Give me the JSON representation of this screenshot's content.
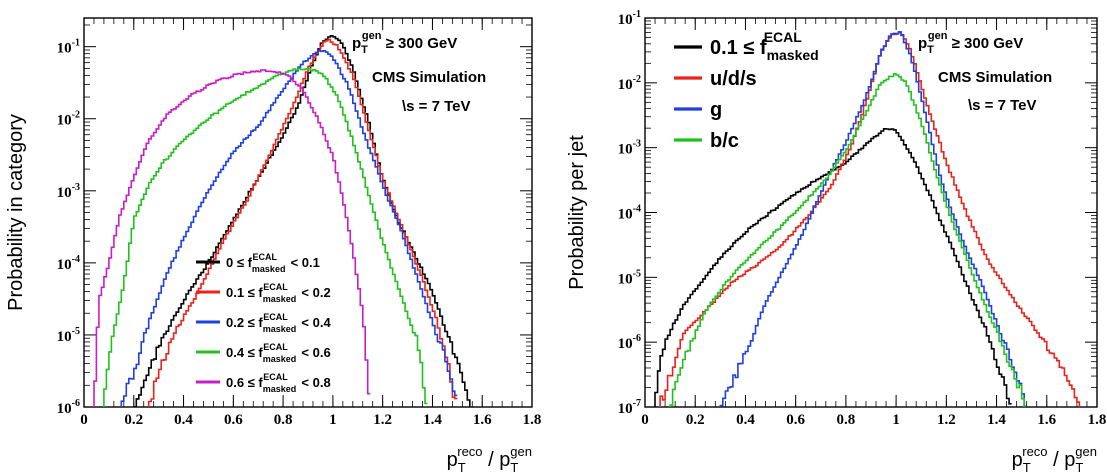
{
  "chart_data": [
    {
      "type": "line",
      "ylabel": "Probability in category",
      "xlabel": {
        "base": "p",
        "num_sup": "reco",
        "num_sub": "T",
        "slash": "/",
        "den_sup": "gen",
        "den_sub": "T"
      },
      "xlim": [
        0,
        1.8
      ],
      "ylim": [
        1e-06,
        0.25
      ],
      "yscale": "log",
      "xticks": [
        "0",
        "0.2",
        "0.4",
        "0.6",
        "0.8",
        "1",
        "1.2",
        "1.4",
        "1.6",
        "1.8"
      ],
      "yticks": [
        {
          "base": "10",
          "exp": "-6"
        },
        {
          "base": "10",
          "exp": "-5"
        },
        {
          "base": "10",
          "exp": "-4"
        },
        {
          "base": "10",
          "exp": "-3"
        },
        {
          "base": "10",
          "exp": "-2"
        },
        {
          "base": "10",
          "exp": "-1"
        }
      ],
      "annotations": {
        "cut": {
          "p": "p",
          "sub": "T",
          "sup": "gen",
          "rest": " ≥ 300 GeV"
        },
        "experiment": "CMS Simulation",
        "energy": "\\s = 7 TeV"
      },
      "legend_position": "bottom-center",
      "series": [
        {
          "name": {
            "pre": "0 ≤ f",
            "sup": "ECAL",
            "sub": "masked",
            "post": " < 0.1"
          },
          "color": "#000000",
          "points": [
            [
              0.2,
              1e-06
            ],
            [
              0.26,
              3e-06
            ],
            [
              0.3,
              7e-06
            ],
            [
              0.4,
              3e-05
            ],
            [
              0.5,
              0.0001
            ],
            [
              0.6,
              0.0004
            ],
            [
              0.7,
              0.0015
            ],
            [
              0.8,
              0.006
            ],
            [
              0.86,
              0.015
            ],
            [
              0.92,
              0.06
            ],
            [
              0.96,
              0.12
            ],
            [
              1.0,
              0.14
            ],
            [
              1.04,
              0.11
            ],
            [
              1.08,
              0.05
            ],
            [
              1.14,
              0.01
            ],
            [
              1.2,
              0.0015
            ],
            [
              1.26,
              0.0004
            ],
            [
              1.32,
              0.00015
            ],
            [
              1.4,
              4e-05
            ],
            [
              1.46,
              1e-05
            ],
            [
              1.52,
              3e-06
            ],
            [
              1.56,
              1e-06
            ]
          ]
        },
        {
          "name": {
            "pre": "0.1 ≤ f",
            "sup": "ECAL",
            "sub": "masked",
            "post": " < 0.2"
          },
          "color": "#e8231c",
          "points": [
            [
              0.26,
              1e-06
            ],
            [
              0.3,
              3e-06
            ],
            [
              0.36,
              1e-05
            ],
            [
              0.46,
              4e-05
            ],
            [
              0.56,
              0.0002
            ],
            [
              0.66,
              0.0008
            ],
            [
              0.76,
              0.004
            ],
            [
              0.84,
              0.015
            ],
            [
              0.9,
              0.05
            ],
            [
              0.96,
              0.11
            ],
            [
              0.98,
              0.13
            ],
            [
              1.02,
              0.1
            ],
            [
              1.08,
              0.04
            ],
            [
              1.14,
              0.008
            ],
            [
              1.2,
              0.0015
            ],
            [
              1.28,
              0.0003
            ],
            [
              1.36,
              6e-05
            ],
            [
              1.42,
              1.5e-05
            ],
            [
              1.46,
              4e-06
            ],
            [
              1.5,
              1e-06
            ]
          ]
        },
        {
          "name": {
            "pre": "0.2 ≤ f",
            "sup": "ECAL",
            "sub": "masked",
            "post": " < 0.4"
          },
          "color": "#1f3fe0",
          "points": [
            [
              0.14,
              1e-06
            ],
            [
              0.2,
              3e-06
            ],
            [
              0.26,
              1.5e-05
            ],
            [
              0.34,
              8e-05
            ],
            [
              0.42,
              0.0003
            ],
            [
              0.5,
              0.001
            ],
            [
              0.6,
              0.0035
            ],
            [
              0.7,
              0.008
            ],
            [
              0.78,
              0.02
            ],
            [
              0.86,
              0.05
            ],
            [
              0.92,
              0.08
            ],
            [
              0.96,
              0.09
            ],
            [
              1.0,
              0.07
            ],
            [
              1.06,
              0.03
            ],
            [
              1.12,
              0.007
            ],
            [
              1.2,
              0.0012
            ],
            [
              1.28,
              0.00025
            ],
            [
              1.34,
              6e-05
            ],
            [
              1.4,
              1.5e-05
            ],
            [
              1.46,
              4e-06
            ],
            [
              1.5,
              1e-06
            ]
          ]
        },
        {
          "name": {
            "pre": "0.4 ≤ f",
            "sup": "ECAL",
            "sub": "masked",
            "post": " < 0.6"
          },
          "color": "#22c11e",
          "points": [
            [
              0.08,
              1e-06
            ],
            [
              0.1,
              5e-06
            ],
            [
              0.16,
              5e-05
            ],
            [
              0.2,
              0.0004
            ],
            [
              0.26,
              0.0012
            ],
            [
              0.32,
              0.0025
            ],
            [
              0.4,
              0.005
            ],
            [
              0.5,
              0.01
            ],
            [
              0.6,
              0.018
            ],
            [
              0.7,
              0.028
            ],
            [
              0.78,
              0.04
            ],
            [
              0.84,
              0.048
            ],
            [
              0.9,
              0.05
            ],
            [
              0.96,
              0.042
            ],
            [
              1.02,
              0.02
            ],
            [
              1.08,
              0.005
            ],
            [
              1.14,
              0.001
            ],
            [
              1.2,
              0.0002
            ],
            [
              1.28,
              3e-05
            ],
            [
              1.34,
              8e-06
            ],
            [
              1.38,
              1e-06
            ]
          ]
        },
        {
          "name": {
            "pre": "0.6 ≤ f",
            "sup": "ECAL",
            "sub": "masked",
            "post": " < 0.8"
          },
          "color": "#c61fc6",
          "points": [
            [
              0.04,
              1e-06
            ],
            [
              0.06,
              3e-05
            ],
            [
              0.1,
              0.0001
            ],
            [
              0.14,
              0.0004
            ],
            [
              0.2,
              0.0015
            ],
            [
              0.26,
              0.005
            ],
            [
              0.34,
              0.012
            ],
            [
              0.42,
              0.02
            ],
            [
              0.52,
              0.032
            ],
            [
              0.62,
              0.042
            ],
            [
              0.7,
              0.046
            ],
            [
              0.76,
              0.046
            ],
            [
              0.82,
              0.04
            ],
            [
              0.88,
              0.025
            ],
            [
              0.94,
              0.01
            ],
            [
              1.0,
              0.003
            ],
            [
              1.04,
              0.0008
            ],
            [
              1.08,
              0.00015
            ],
            [
              1.12,
              2e-05
            ],
            [
              1.15,
              1e-06
            ]
          ]
        }
      ]
    },
    {
      "type": "line",
      "ylabel": "Probability per jet",
      "xlabel": {
        "base": "p",
        "num_sup": "reco",
        "num_sub": "T",
        "slash": "/",
        "den_sup": "gen",
        "den_sub": "T"
      },
      "xlim": [
        0,
        1.8
      ],
      "ylim": [
        1e-07,
        0.1
      ],
      "yscale": "log",
      "xticks": [
        "0",
        "0.2",
        "0.4",
        "0.6",
        "0.8",
        "1",
        "1.2",
        "1.4",
        "1.6",
        "1.8"
      ],
      "yticks": [
        {
          "base": "10",
          "exp": "-7"
        },
        {
          "base": "10",
          "exp": "-6"
        },
        {
          "base": "10",
          "exp": "-5"
        },
        {
          "base": "10",
          "exp": "-4"
        },
        {
          "base": "10",
          "exp": "-3"
        },
        {
          "base": "10",
          "exp": "-2"
        },
        {
          "base": "10",
          "exp": "-1"
        }
      ],
      "annotations": {
        "cut": {
          "p": "p",
          "sub": "T",
          "sup": "gen",
          "rest": " ≥ 300 GeV"
        },
        "experiment": "CMS Simulation",
        "energy": "\\s = 7 TeV"
      },
      "legend_position": "top-left",
      "series": [
        {
          "name": {
            "pre": "0.1 ≤ f",
            "sup": "ECAL",
            "sub": "masked",
            "post": ""
          },
          "color": "#000000",
          "points": [
            [
              0.04,
              1e-07
            ],
            [
              0.06,
              6e-07
            ],
            [
              0.1,
              1.5e-06
            ],
            [
              0.16,
              4e-06
            ],
            [
              0.22,
              8e-06
            ],
            [
              0.3,
              2e-05
            ],
            [
              0.4,
              5e-05
            ],
            [
              0.5,
              0.0001
            ],
            [
              0.6,
              0.0002
            ],
            [
              0.7,
              0.00035
            ],
            [
              0.8,
              0.0006
            ],
            [
              0.9,
              0.0013
            ],
            [
              0.96,
              0.002
            ],
            [
              1.0,
              0.0018
            ],
            [
              1.06,
              0.0008
            ],
            [
              1.12,
              0.00025
            ],
            [
              1.18,
              7e-05
            ],
            [
              1.24,
              2e-05
            ],
            [
              1.3,
              5e-06
            ],
            [
              1.36,
              1.5e-06
            ],
            [
              1.42,
              3e-07
            ],
            [
              1.46,
              1e-07
            ]
          ]
        },
        {
          "name": {
            "pre": "u/d/s",
            "sup": "",
            "sub": "",
            "post": ""
          },
          "color": "#e8231c",
          "points": [
            [
              0.06,
              1e-07
            ],
            [
              0.1,
              3e-07
            ],
            [
              0.16,
              1.5e-06
            ],
            [
              0.24,
              3e-06
            ],
            [
              0.34,
              8e-06
            ],
            [
              0.44,
              1.5e-05
            ],
            [
              0.54,
              3e-05
            ],
            [
              0.64,
              8e-05
            ],
            [
              0.74,
              0.00025
            ],
            [
              0.82,
              0.001
            ],
            [
              0.88,
              0.005
            ],
            [
              0.94,
              0.03
            ],
            [
              0.98,
              0.055
            ],
            [
              1.02,
              0.06
            ],
            [
              1.06,
              0.03
            ],
            [
              1.12,
              0.005
            ],
            [
              1.2,
              0.0006
            ],
            [
              1.28,
              0.0001
            ],
            [
              1.36,
              2e-05
            ],
            [
              1.46,
              5e-06
            ],
            [
              1.56,
              1.5e-06
            ],
            [
              1.66,
              4e-07
            ],
            [
              1.74,
              1e-07
            ]
          ]
        },
        {
          "name": {
            "pre": "g",
            "sup": "",
            "sub": "",
            "post": ""
          },
          "color": "#1f3fe0",
          "points": [
            [
              0.3,
              1e-07
            ],
            [
              0.36,
              3e-07
            ],
            [
              0.42,
              1e-06
            ],
            [
              0.48,
              4e-06
            ],
            [
              0.56,
              1.5e-05
            ],
            [
              0.64,
              6e-05
            ],
            [
              0.72,
              0.0003
            ],
            [
              0.8,
              0.0012
            ],
            [
              0.88,
              0.006
            ],
            [
              0.94,
              0.03
            ],
            [
              0.98,
              0.055
            ],
            [
              1.02,
              0.06
            ],
            [
              1.06,
              0.025
            ],
            [
              1.12,
              0.003
            ],
            [
              1.18,
              0.0003
            ],
            [
              1.26,
              4e-05
            ],
            [
              1.34,
              8e-06
            ],
            [
              1.4,
              2e-06
            ],
            [
              1.46,
              5e-07
            ],
            [
              1.52,
              1e-07
            ]
          ]
        },
        {
          "name": {
            "pre": "b/c",
            "sup": "",
            "sub": "",
            "post": ""
          },
          "color": "#22c11e",
          "points": [
            [
              0.1,
              1e-07
            ],
            [
              0.16,
              6e-07
            ],
            [
              0.24,
              3e-06
            ],
            [
              0.34,
              1e-05
            ],
            [
              0.44,
              2.5e-05
            ],
            [
              0.54,
              6e-05
            ],
            [
              0.64,
              0.00015
            ],
            [
              0.74,
              0.0004
            ],
            [
              0.82,
              0.0012
            ],
            [
              0.88,
              0.0035
            ],
            [
              0.94,
              0.01
            ],
            [
              1.0,
              0.014
            ],
            [
              1.04,
              0.01
            ],
            [
              1.1,
              0.0025
            ],
            [
              1.16,
              0.0004
            ],
            [
              1.22,
              8e-05
            ],
            [
              1.28,
              2e-05
            ],
            [
              1.34,
              5e-06
            ],
            [
              1.4,
              1.5e-06
            ],
            [
              1.46,
              4e-07
            ],
            [
              1.52,
              1e-07
            ]
          ]
        }
      ]
    }
  ]
}
